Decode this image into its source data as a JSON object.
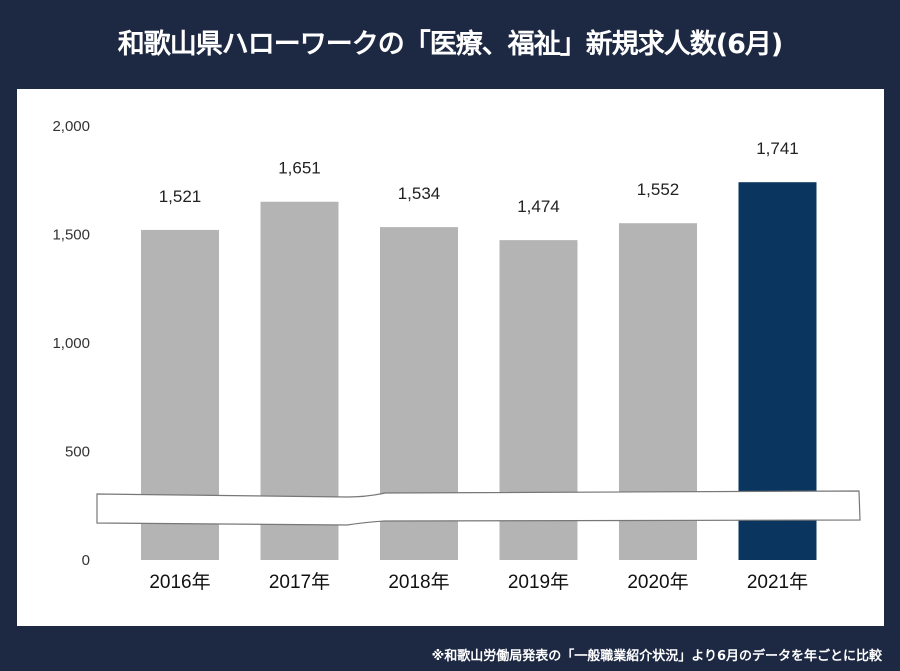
{
  "title": "和歌山県ハローワークの「医療、福祉」新規求人数(6月)",
  "footnote": "※和歌山労働局発表の「一般職業紹介状況」より6月のデータを年ごとに比較",
  "chart_data": {
    "type": "bar",
    "title": "和歌山県ハローワークの「医療、福祉」新規求人数(6月)",
    "categories": [
      "2016年",
      "2017年",
      "2018年",
      "2019年",
      "2020年",
      "2021年"
    ],
    "values": [
      1521,
      1651,
      1534,
      1474,
      1552,
      1741
    ],
    "data_labels": [
      "1,521",
      "1,651",
      "1,534",
      "1,474",
      "1,552",
      "1,741"
    ],
    "yticks": [
      "0",
      "500",
      "1,000",
      "1,500",
      "2,000"
    ],
    "ylim": [
      0,
      2000
    ],
    "axis_break": true,
    "grid": false,
    "colors": {
      "default": "#b4b4b4",
      "highlight": "#0a355f",
      "background": "#1d2843"
    },
    "highlight_index": 5
  }
}
